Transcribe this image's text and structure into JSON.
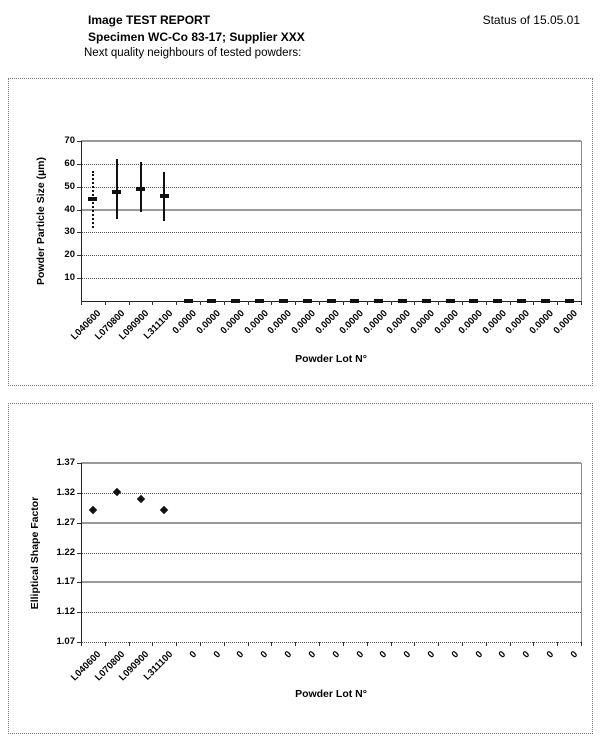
{
  "header": {
    "title": "Image TEST REPORT",
    "status": "Status of 15.05.01",
    "specimen": "Specimen  WC-Co 83-17; Supplier XXX",
    "subtitle": "Next quality neighbours of tested powders:"
  },
  "chart_data": [
    {
      "type": "scatter",
      "xlabel": "Powder Lot N°",
      "ylabel": "Powder Particle Size (µm)",
      "ylim": [
        0,
        70
      ],
      "grid": "on",
      "marker": "dash",
      "yticks": [
        {
          "label": "10",
          "value": 10,
          "style": "dotted"
        },
        {
          "label": "20",
          "value": 20,
          "style": "dotted"
        },
        {
          "label": "30",
          "value": 30,
          "style": "dotted"
        },
        {
          "label": "40",
          "value": 40,
          "style": "solid"
        },
        {
          "label": "50",
          "value": 50,
          "style": "dotted"
        },
        {
          "label": "60",
          "value": 60,
          "style": "dotted"
        },
        {
          "label": "70",
          "value": 70,
          "style": "solid"
        }
      ],
      "points": [
        {
          "category": "L040600",
          "mean": 44.5,
          "low": 32,
          "high": 57,
          "whisker": "dotted"
        },
        {
          "category": "L070800",
          "mean": 47.5,
          "low": 36,
          "high": 62,
          "whisker": "solid"
        },
        {
          "category": "L090900",
          "mean": 49,
          "low": 39,
          "high": 61,
          "whisker": "solid"
        },
        {
          "category": "L311100",
          "mean": 46,
          "low": 35,
          "high": 56.5,
          "whisker": "solid"
        },
        {
          "category": "0.0000",
          "mean": 0
        },
        {
          "category": "0.0000",
          "mean": 0
        },
        {
          "category": "0.0000",
          "mean": 0
        },
        {
          "category": "0.0000",
          "mean": 0
        },
        {
          "category": "0.0000",
          "mean": 0
        },
        {
          "category": "0.0000",
          "mean": 0
        },
        {
          "category": "0.0000",
          "mean": 0
        },
        {
          "category": "0.0000",
          "mean": 0
        },
        {
          "category": "0.0000",
          "mean": 0
        },
        {
          "category": "0.0000",
          "mean": 0
        },
        {
          "category": "0.0000",
          "mean": 0
        },
        {
          "category": "0.0000",
          "mean": 0
        },
        {
          "category": "0.0000",
          "mean": 0
        },
        {
          "category": "0.0000",
          "mean": 0
        },
        {
          "category": "0.0000",
          "mean": 0
        },
        {
          "category": "0.0000",
          "mean": 0
        },
        {
          "category": "0.0000",
          "mean": 0
        }
      ]
    },
    {
      "type": "scatter",
      "xlabel": "Powder Lot N°",
      "ylabel": "Elliptical Shape Factor",
      "ylim": [
        1.07,
        1.37
      ],
      "grid": "on",
      "marker": "diamond",
      "yticks": [
        {
          "label": "1.07",
          "value": 1.07,
          "style": "axis"
        },
        {
          "label": "1.12",
          "value": 1.12,
          "style": "dotted"
        },
        {
          "label": "1.17",
          "value": 1.17,
          "style": "solid"
        },
        {
          "label": "1.22",
          "value": 1.22,
          "style": "dotted"
        },
        {
          "label": "1.27",
          "value": 1.27,
          "style": "solid"
        },
        {
          "label": "1.32",
          "value": 1.32,
          "style": "dotted"
        },
        {
          "label": "1.37",
          "value": 1.37,
          "style": "solid"
        }
      ],
      "points": [
        {
          "category": "L040600",
          "value": 1.292
        },
        {
          "category": "L070800",
          "value": 1.321
        },
        {
          "category": "L090900",
          "value": 1.31
        },
        {
          "category": "L311100",
          "value": 1.291
        },
        {
          "category": "0"
        },
        {
          "category": "0"
        },
        {
          "category": "0"
        },
        {
          "category": "0"
        },
        {
          "category": "0"
        },
        {
          "category": "0"
        },
        {
          "category": "0"
        },
        {
          "category": "0"
        },
        {
          "category": "0"
        },
        {
          "category": "0"
        },
        {
          "category": "0"
        },
        {
          "category": "0"
        },
        {
          "category": "0"
        },
        {
          "category": "0"
        },
        {
          "category": "0"
        },
        {
          "category": "0"
        },
        {
          "category": "0"
        }
      ]
    }
  ]
}
